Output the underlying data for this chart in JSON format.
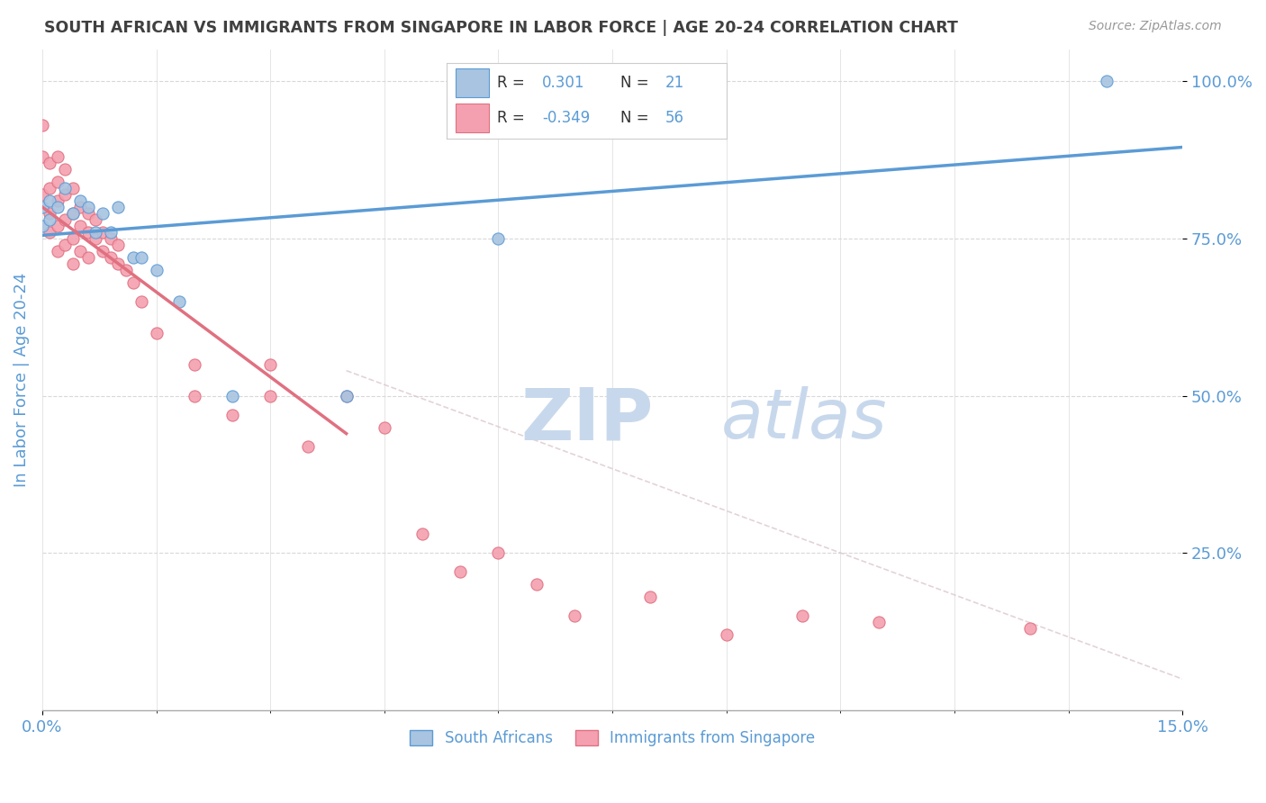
{
  "title": "SOUTH AFRICAN VS IMMIGRANTS FROM SINGAPORE IN LABOR FORCE | AGE 20-24 CORRELATION CHART",
  "source_text": "Source: ZipAtlas.com",
  "ylabel": "In Labor Force | Age 20-24",
  "xlim": [
    0.0,
    0.15
  ],
  "ylim": [
    0.0,
    1.05
  ],
  "xtick_labels": [
    "0.0%",
    "15.0%"
  ],
  "ytick_labels": [
    "25.0%",
    "50.0%",
    "75.0%",
    "100.0%"
  ],
  "ytick_values": [
    0.25,
    0.5,
    0.75,
    1.0
  ],
  "color_blue": "#a8c4e0",
  "color_pink": "#f4a0b0",
  "color_blue_line": "#5b9bd5",
  "color_pink_line": "#e07080",
  "color_diag_line": "#ddc8cc",
  "title_color": "#404040",
  "axis_label_color": "#5b9bd5",
  "watermark_color": "#c8d8ec",
  "south_africans_x": [
    0.0,
    0.0,
    0.001,
    0.001,
    0.002,
    0.003,
    0.004,
    0.005,
    0.006,
    0.007,
    0.008,
    0.009,
    0.01,
    0.012,
    0.013,
    0.015,
    0.018,
    0.025,
    0.04,
    0.06,
    0.14
  ],
  "south_africans_y": [
    0.8,
    0.77,
    0.81,
    0.78,
    0.8,
    0.83,
    0.79,
    0.81,
    0.8,
    0.76,
    0.79,
    0.76,
    0.8,
    0.72,
    0.72,
    0.7,
    0.65,
    0.5,
    0.5,
    0.75,
    1.0
  ],
  "singapore_x": [
    0.0,
    0.0,
    0.0,
    0.001,
    0.001,
    0.001,
    0.001,
    0.002,
    0.002,
    0.002,
    0.002,
    0.002,
    0.003,
    0.003,
    0.003,
    0.003,
    0.004,
    0.004,
    0.004,
    0.004,
    0.005,
    0.005,
    0.005,
    0.006,
    0.006,
    0.006,
    0.007,
    0.007,
    0.008,
    0.008,
    0.009,
    0.009,
    0.01,
    0.01,
    0.011,
    0.012,
    0.013,
    0.015,
    0.02,
    0.02,
    0.025,
    0.03,
    0.03,
    0.035,
    0.04,
    0.045,
    0.05,
    0.055,
    0.06,
    0.065,
    0.07,
    0.08,
    0.09,
    0.1,
    0.11,
    0.13
  ],
  "singapore_y": [
    0.93,
    0.88,
    0.82,
    0.87,
    0.83,
    0.79,
    0.76,
    0.88,
    0.84,
    0.81,
    0.77,
    0.73,
    0.86,
    0.82,
    0.78,
    0.74,
    0.83,
    0.79,
    0.75,
    0.71,
    0.8,
    0.77,
    0.73,
    0.79,
    0.76,
    0.72,
    0.78,
    0.75,
    0.76,
    0.73,
    0.75,
    0.72,
    0.74,
    0.71,
    0.7,
    0.68,
    0.65,
    0.6,
    0.55,
    0.5,
    0.47,
    0.55,
    0.5,
    0.42,
    0.5,
    0.45,
    0.28,
    0.22,
    0.25,
    0.2,
    0.15,
    0.18,
    0.12,
    0.15,
    0.14,
    0.13
  ],
  "blue_line_x": [
    0.0,
    0.15
  ],
  "blue_line_y": [
    0.755,
    0.895
  ],
  "pink_line_x": [
    0.0,
    0.04
  ],
  "pink_line_y": [
    0.8,
    0.44
  ],
  "diag_line_x": [
    0.04,
    0.15
  ],
  "diag_line_y": [
    0.54,
    0.05
  ],
  "legend_label_blue": "South Africans",
  "legend_label_pink": "Immigrants from Singapore"
}
